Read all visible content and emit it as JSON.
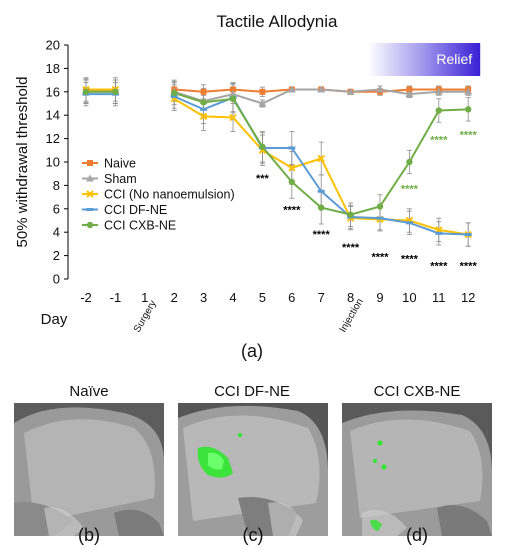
{
  "chart_data": {
    "type": "line",
    "title": "Tactile Allodynia",
    "ylabel": "50% withdrawal threshold",
    "xlabel": "Day",
    "ylim": [
      0,
      20
    ],
    "yticks": [
      0,
      2,
      4,
      6,
      8,
      10,
      12,
      14,
      16,
      18,
      20
    ],
    "x_categories": [
      "-2",
      "-1",
      "1",
      "2",
      "3",
      "4",
      "5",
      "6",
      "7",
      "8",
      "9",
      "10",
      "11",
      "12"
    ],
    "event_labels": [
      {
        "x": "1",
        "text": "Surgery"
      },
      {
        "x": "8",
        "text": "Injection"
      }
    ],
    "relief_band": {
      "from": "9",
      "to": "12",
      "label": "Relief"
    },
    "legend_position": "middle-left",
    "grid": false,
    "series": [
      {
        "name": "Naive",
        "color": "#ED7D31",
        "marker": "square",
        "values": [
          16.1,
          16.0,
          null,
          16.2,
          16.0,
          16.2,
          16.0,
          16.2,
          16.2,
          16.0,
          16.0,
          16.2,
          16.2,
          16.2
        ],
        "errors": [
          1.0,
          1.0,
          null,
          0.8,
          0.6,
          0.6,
          0.4,
          0.2,
          0.2,
          0.2,
          0.3,
          0.3,
          0.3,
          0.3
        ]
      },
      {
        "name": "Sham",
        "color": "#A5A5A5",
        "marker": "triangle",
        "values": [
          16.0,
          16.0,
          null,
          16.0,
          15.2,
          15.8,
          15.0,
          16.2,
          16.2,
          16.0,
          16.2,
          15.8,
          16.0,
          16.0
        ],
        "errors": [
          1.0,
          1.0,
          null,
          0.8,
          0.6,
          0.6,
          0.3,
          0.2,
          0.2,
          0.2,
          0.3,
          0.3,
          0.3,
          0.3
        ]
      },
      {
        "name": "CCI (No nanoemulsion)",
        "color": "#FFC000",
        "marker": "x",
        "values": [
          16.2,
          16.2,
          null,
          15.4,
          13.9,
          13.8,
          11.0,
          9.5,
          10.3,
          5.2,
          5.1,
          5.0,
          4.2,
          3.8
        ],
        "errors": [
          1.0,
          1.0,
          null,
          1.0,
          1.2,
          1.2,
          1.3,
          1.4,
          1.4,
          1.0,
          1.0,
          1.0,
          1.0,
          1.0
        ]
      },
      {
        "name": "CCI DF-NE",
        "color": "#5B9BD5",
        "marker": "dash",
        "values": [
          15.8,
          15.8,
          null,
          15.6,
          14.5,
          15.5,
          11.2,
          11.2,
          7.5,
          5.3,
          5.2,
          4.8,
          3.9,
          3.8
        ],
        "errors": [
          1.0,
          1.0,
          null,
          1.0,
          1.2,
          1.2,
          1.3,
          1.4,
          1.4,
          1.0,
          1.0,
          1.0,
          1.0,
          1.0
        ]
      },
      {
        "name": "CCI CXB-NE",
        "color": "#70AD47",
        "marker": "circle",
        "values": [
          16.0,
          16.0,
          null,
          15.9,
          15.1,
          15.4,
          11.3,
          8.3,
          6.1,
          5.5,
          6.2,
          10.0,
          14.4,
          14.5
        ],
        "errors": [
          1.0,
          1.0,
          null,
          1.0,
          1.2,
          1.2,
          1.3,
          1.4,
          1.4,
          1.0,
          1.0,
          1.0,
          1.0,
          1.0
        ]
      }
    ],
    "significance": [
      {
        "x": "5",
        "y": 8.3,
        "text": "***",
        "color": "#000000"
      },
      {
        "x": "6",
        "y": 5.6,
        "text": "****",
        "color": "#000000"
      },
      {
        "x": "7",
        "y": 3.5,
        "text": "****",
        "color": "#000000"
      },
      {
        "x": "8",
        "y": 2.4,
        "text": "****",
        "color": "#000000"
      },
      {
        "x": "9",
        "y": 1.6,
        "text": "****",
        "color": "#000000"
      },
      {
        "x": "10",
        "y": 1.4,
        "text": "****",
        "color": "#000000"
      },
      {
        "x": "11",
        "y": 0.8,
        "text": "****",
        "color": "#000000"
      },
      {
        "x": "12",
        "y": 0.8,
        "text": "****",
        "color": "#000000"
      },
      {
        "x": "10",
        "y": 7.4,
        "text": "****",
        "color": "#70AD47"
      },
      {
        "x": "11",
        "y": 11.6,
        "text": "****",
        "color": "#70AD47"
      },
      {
        "x": "12",
        "y": 12.0,
        "text": "****",
        "color": "#70AD47"
      }
    ]
  },
  "captions": {
    "a": "(a)",
    "b": "(b)",
    "c": "(c)",
    "d": "(d)"
  },
  "panels": [
    {
      "title": "Naïve"
    },
    {
      "title": "CCI DF-NE"
    },
    {
      "title": "CCI CXB-NE"
    }
  ]
}
